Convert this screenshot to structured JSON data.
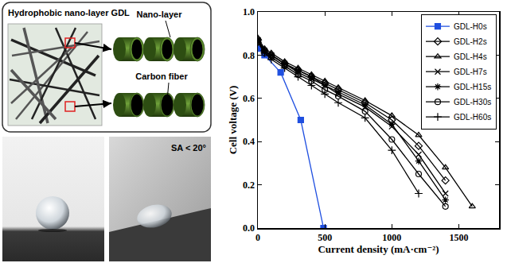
{
  "chart_data": {
    "type": "line",
    "x_label": "Current density (mA·cm⁻²)",
    "y_label": "Cell voltage (V)",
    "xlim": [
      0,
      1800
    ],
    "xticks": [
      0,
      500,
      1000,
      1500
    ],
    "ylim": [
      0,
      1
    ],
    "yticks": [
      {
        "value": 0,
        "label": "0.0"
      },
      0.2,
      0.4,
      0.6,
      0.8,
      {
        "value": 1,
        "label": "1.0"
      }
    ],
    "grid": false,
    "legend": "upper right",
    "series": [
      {
        "name": "GDL-H0s",
        "color": "#1f4fe0",
        "marker": "square",
        "line_style": "solid",
        "x": [
          10,
          50,
          170,
          320,
          490
        ],
        "values": [
          0.83,
          0.8,
          0.72,
          0.5,
          0.0
        ]
      },
      {
        "name": "GDL-H2s",
        "color": "#000000",
        "marker": "diamond",
        "line_style": "solid",
        "x": [
          0,
          50,
          100,
          200,
          300,
          400,
          500,
          600,
          800,
          1000,
          1200,
          1400
        ],
        "values": [
          0.87,
          0.82,
          0.8,
          0.76,
          0.73,
          0.7,
          0.67,
          0.64,
          0.58,
          0.5,
          0.38,
          0.22
        ]
      },
      {
        "name": "GDL-H4s",
        "color": "#000000",
        "marker": "triangle",
        "line_style": "solid",
        "x": [
          0,
          50,
          100,
          200,
          300,
          400,
          500,
          600,
          800,
          1000,
          1200,
          1400,
          1600
        ],
        "values": [
          0.88,
          0.83,
          0.81,
          0.77,
          0.74,
          0.71,
          0.68,
          0.65,
          0.59,
          0.52,
          0.43,
          0.28,
          0.1
        ]
      },
      {
        "name": "GDL-H7s",
        "color": "#000000",
        "marker": "x",
        "line_style": "solid",
        "x": [
          0,
          50,
          100,
          200,
          300,
          400,
          500,
          600,
          800,
          1000,
          1200,
          1400
        ],
        "values": [
          0.87,
          0.82,
          0.8,
          0.76,
          0.72,
          0.69,
          0.66,
          0.62,
          0.56,
          0.47,
          0.34,
          0.16
        ]
      },
      {
        "name": "GDL-H15s",
        "color": "#000000",
        "marker": "asterisk",
        "line_style": "solid",
        "x": [
          0,
          50,
          100,
          200,
          300,
          400,
          500,
          600,
          800,
          1000,
          1200,
          1400
        ],
        "values": [
          0.87,
          0.82,
          0.8,
          0.76,
          0.73,
          0.7,
          0.66,
          0.63,
          0.57,
          0.48,
          0.31,
          0.13
        ]
      },
      {
        "name": "GDL-H30s",
        "color": "#000000",
        "marker": "circle",
        "line_style": "solid",
        "x": [
          0,
          50,
          100,
          200,
          300,
          400,
          500,
          600,
          800,
          1000,
          1200,
          1400
        ],
        "values": [
          0.86,
          0.81,
          0.79,
          0.75,
          0.71,
          0.68,
          0.64,
          0.61,
          0.54,
          0.41,
          0.25,
          0.1
        ]
      },
      {
        "name": "GDL-H60s",
        "color": "#000000",
        "marker": "plus",
        "line_style": "solid",
        "x": [
          0,
          50,
          100,
          200,
          300,
          400,
          500,
          600,
          800,
          1000,
          1200
        ],
        "values": [
          0.86,
          0.81,
          0.78,
          0.74,
          0.7,
          0.66,
          0.62,
          0.58,
          0.51,
          0.36,
          0.16
        ]
      }
    ]
  },
  "diagram": {
    "title": "Hydrophobic nano-layer GDL",
    "layer_label": "Nano-layer",
    "fiber_label": "Carbon fiber"
  },
  "photos": {
    "right_label": "SA < 20°"
  }
}
